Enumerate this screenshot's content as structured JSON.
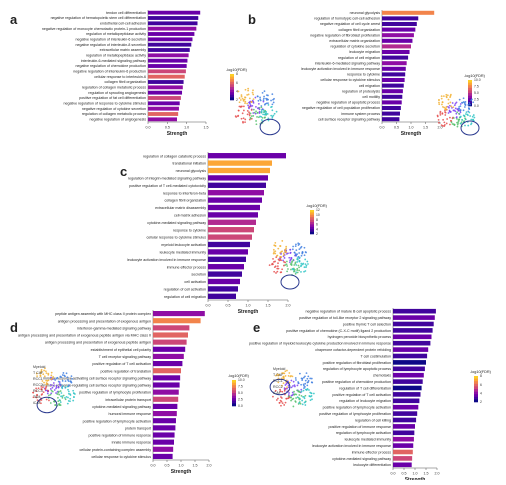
{
  "colors": {
    "scale": [
      "#0d0887",
      "#41049d",
      "#6a00a8",
      "#8f0da4",
      "#b12a90",
      "#cc4778",
      "#e16462",
      "#f2844b",
      "#fca636",
      "#fcce25"
    ],
    "cluster_palette": [
      "#7b3ff2",
      "#e54b4b",
      "#3f7fe0",
      "#55c06b",
      "#f2b134",
      "#2fc4c4",
      "#f47fc1",
      "#9c6b3e"
    ],
    "highlight_circle": "#2b3a8f"
  },
  "chart_data": [
    {
      "type": "bar",
      "panel_label": "a",
      "xlabel": "Strength",
      "xlim": [
        0,
        1.5
      ],
      "xticks": [
        "0.0",
        "0.5",
        "1.0",
        "1.5"
      ],
      "colorbar": {
        "title": "-log10(FDR)",
        "ticks": [
          "8",
          "6",
          "4",
          "2"
        ],
        "range": [
          1,
          9
        ]
      },
      "umap_labels": [],
      "categories": [
        "tendon cell differentiation",
        "negative regulation of hematopoietic stem cell differentiation",
        "endothelial cell-cell adhesion",
        "negative regulation of monocyte chemotactic protein-1 production",
        "regulation of metallopeptidase activity",
        "negative regulation of interleukin-6 secretion",
        "negative regulation of interleukin-8 secretion",
        "extracellular matrix assembly",
        "regulation of metallopeptidase activity",
        "interleukin-6-mediated signaling pathway",
        "negative regulation of chemokine production",
        "negative regulation of interleukin-6 production",
        "cellular response to interleukin-6",
        "collagen fibril organization",
        "regulation of collagen metabolic process",
        "regulation of sprouting angiogenesis",
        "positive regulation of fat cell differentiation",
        "negative regulation of response to cytokine stimulus",
        "negative regulation of cytokine secretion",
        "regulation of collagen metabolic process",
        "negative regulation of angiogenesis"
      ],
      "values": [
        1.35,
        1.3,
        1.28,
        1.25,
        1.2,
        1.15,
        1.12,
        1.08,
        1.05,
        1.02,
        1.0,
        0.98,
        0.95,
        0.92,
        0.9,
        0.88,
        0.85,
        0.82,
        0.8,
        0.78,
        0.75
      ],
      "color_values": [
        3,
        2,
        2,
        4,
        3,
        3,
        2,
        2,
        4,
        3,
        3,
        5,
        6,
        2,
        4,
        3,
        5,
        3,
        4,
        6,
        4
      ]
    },
    {
      "type": "bar",
      "panel_label": "b",
      "xlabel": "Strength",
      "xlim": [
        0,
        2
      ],
      "xticks": [
        "0.0",
        "0.5",
        "1.0",
        "1.5",
        "2.0"
      ],
      "colorbar": {
        "title": "-log10(FDR)",
        "ticks": [
          "10.0",
          "7.5",
          "5.0",
          "2.5",
          "0.0"
        ],
        "range": [
          0,
          10
        ]
      },
      "umap_labels": [],
      "categories": [
        "neuronal glycolysis",
        "regulation of homotypic cell-cell adhesion",
        "negative regulation of cell cycle arrest",
        "collagen fibril organization",
        "negative regulation of fibroblast proliferation",
        "extracellular matrix organization",
        "regulation of cytokine secretion",
        "leukocyte migration",
        "regulation of cell migration",
        "interleukin-6-mediated signaling pathway",
        "leukocyte activation involved in immune response",
        "response to cytokine",
        "cellular response to cytokine stimulus",
        "cell migration",
        "regulation of proteolysis",
        "cell motility",
        "negative regulation of apoptotic process",
        "negative regulation of cell population proliferation",
        "immune system process",
        "cell surface receptor signaling pathway"
      ],
      "values": [
        1.8,
        1.25,
        1.2,
        1.15,
        1.1,
        1.05,
        1.0,
        0.95,
        0.9,
        0.85,
        0.82,
        0.8,
        0.78,
        0.75,
        0.72,
        0.7,
        0.68,
        0.65,
        0.62,
        0.6
      ],
      "color_values": [
        8,
        1,
        1,
        2,
        3,
        2,
        4,
        2,
        1,
        3,
        2,
        1,
        2,
        1,
        2,
        1,
        2,
        1,
        1,
        1
      ]
    },
    {
      "type": "bar",
      "panel_label": "c",
      "xlabel": "Strength",
      "xlim": [
        0,
        2
      ],
      "xticks": [
        "0.0",
        "0.5",
        "1.0",
        "1.5",
        "2.0"
      ],
      "colorbar": {
        "title": "-log10(FDR)",
        "ticks": [
          "12",
          "10",
          "8",
          "6",
          "4",
          "2"
        ],
        "range": [
          1,
          13
        ]
      },
      "umap_labels": [],
      "categories": [
        "regulation of collagen catabolic process",
        "translational initiation",
        "neuronal glycolysis",
        "regulation of integrin-mediated signaling pathway",
        "positive regulation of T cell-mediated cytotoxicity",
        "response to interferon-beta",
        "collagen fibril organization",
        "extracellular matrix disassembly",
        "cell-matrix adhesion",
        "cytokine-mediated signaling pathway",
        "response to cytokine",
        "cellular response to cytokine stimulus",
        "myeloid leukocyte activation",
        "leukocyte mediated immunity",
        "leukocyte activation involved in immune response",
        "immune effector process",
        "secretion",
        "cell activation",
        "regulation of cell activation",
        "regulation of cell migration"
      ],
      "values": [
        1.95,
        1.6,
        1.55,
        1.5,
        1.45,
        1.4,
        1.35,
        1.3,
        1.25,
        1.2,
        1.15,
        1.1,
        1.05,
        1.0,
        0.95,
        0.9,
        0.85,
        0.8,
        0.75,
        0.7
      ],
      "color_values": [
        4,
        12,
        11,
        3,
        2,
        5,
        3,
        4,
        3,
        6,
        8,
        7,
        2,
        3,
        2,
        3,
        2,
        3,
        2,
        2
      ]
    },
    {
      "type": "bar",
      "panel_label": "d",
      "xlabel": "Strength",
      "xlim": [
        0,
        2
      ],
      "xticks": [
        "0.0",
        "0.5",
        "1.0",
        "1.5",
        "2.0"
      ],
      "colorbar": {
        "title": "-log10(FDR)",
        "ticks": [
          "10.0",
          "7.5",
          "5.0",
          "2.5",
          "0.0"
        ],
        "range": [
          0,
          10
        ]
      },
      "umap_labels": [
        "Myeloid",
        "T CAF",
        "RCC1",
        "RCC2",
        "RCC3",
        "TAM",
        "iCAF"
      ],
      "categories": [
        "peptide antigen assembly with MHC class II protein complex",
        "antigen processing and presentation of exogenous antigen",
        "interferon-gamma-mediated signaling pathway",
        "antigen processing and presentation of exogenous peptide antigen via MHC class II",
        "antigen processing and presentation of exogenous peptide antigen",
        "establishment of epithelial cell polarity",
        "T cell receptor signaling pathway",
        "positive regulation of T cell activation",
        "positive regulation of translation",
        "immune response-activating cell surface receptor signaling pathway",
        "immune response-regulating cell surface receptor signaling pathway",
        "positive regulation of lymphocyte proliferation",
        "intracellular protein transport",
        "cytokine-mediated signaling pathway",
        "humoral immune response",
        "positive regulation of lymphocyte activation",
        "protein transport",
        "positive regulation of immune response",
        "innate immune response",
        "cellular protein-containing complex assembly",
        "cellular response to cytokine stimulus"
      ],
      "values": [
        1.85,
        1.7,
        1.3,
        1.25,
        1.2,
        1.15,
        1.1,
        1.05,
        1.0,
        0.97,
        0.95,
        0.92,
        0.9,
        0.87,
        0.85,
        0.82,
        0.8,
        0.77,
        0.75,
        0.72,
        0.7
      ],
      "color_values": [
        3,
        8,
        5,
        7,
        6,
        2,
        3,
        2,
        7,
        2,
        2,
        3,
        6,
        2,
        3,
        2,
        2,
        2,
        2,
        3,
        2
      ]
    },
    {
      "type": "bar",
      "panel_label": "e",
      "xlabel": "Strength",
      "xlim": [
        0,
        2
      ],
      "xticks": [
        "0.0",
        "0.5",
        "1.0",
        "1.5",
        "2.0"
      ],
      "colorbar": {
        "title": "-log10(FDR)",
        "ticks": [
          "8",
          "6",
          "4",
          "2"
        ],
        "range": [
          1,
          9
        ]
      },
      "umap_labels": [
        "Myeloid",
        "T CAF",
        "RCC1",
        "RCC2",
        "iCAF"
      ],
      "categories": [
        "negative regulation of mature B cell apoptotic process",
        "positive regulation of toll-like receptor 2 signaling pathway",
        "positive thymic T cell selection",
        "positive regulation of chemokine (C-X-C motif) ligand 2 production",
        "hydrogen peroxide biosynthetic process",
        "positive regulation of myeloid leukocyte cytokine production involved in immune response",
        "chaperone cofactor-dependent protein refolding",
        "T cell costimulation",
        "positive regulation of fibroblast proliferation",
        "regulation of lymphocyte apoptotic process",
        "chemotaxis",
        "positive regulation of chemokine production",
        "regulation of T cell differentiation",
        "positive regulation of T cell activation",
        "regulation of leukocyte migration",
        "positive regulation of lymphocyte activation",
        "positive regulation of lymphocyte proliferation",
        "regulation of cell killing",
        "positive regulation of immune response",
        "regulation of lymphocyte activation",
        "leukocyte mediated immunity",
        "leukocyte activation involved in immune response",
        "immune effector process",
        "cytokine-mediated signaling pathway",
        "leukocyte differentiation"
      ],
      "values": [
        1.95,
        1.9,
        1.85,
        1.8,
        1.75,
        1.7,
        1.6,
        1.55,
        1.5,
        1.45,
        1.4,
        1.35,
        1.3,
        1.25,
        1.2,
        1.15,
        1.1,
        1.05,
        1.0,
        0.97,
        0.95,
        0.92,
        0.9,
        0.87,
        0.85
      ],
      "color_values": [
        2,
        3,
        2,
        2,
        3,
        2,
        3,
        2,
        1,
        2,
        3,
        2,
        1,
        2,
        2,
        3,
        2,
        2,
        3,
        2,
        4,
        3,
        6,
        5,
        3
      ]
    }
  ]
}
